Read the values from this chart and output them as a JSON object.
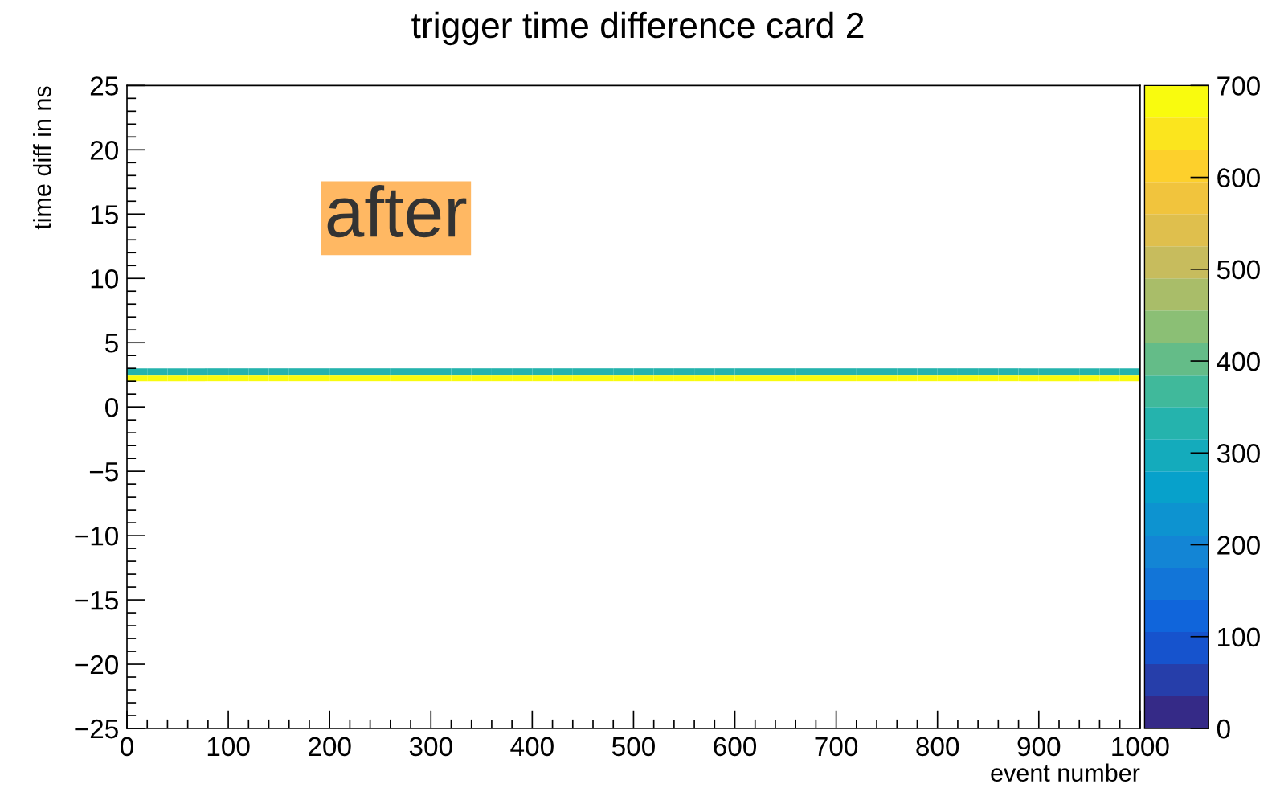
{
  "chart_data": {
    "type": "scatter",
    "title": "trigger time difference card 2",
    "xlabel": "event number",
    "ylabel": "time diff in ns",
    "annotations": [
      "after"
    ],
    "xlim": [
      0,
      1000
    ],
    "xticks": [
      0,
      100,
      200,
      300,
      400,
      500,
      600,
      700,
      800,
      900,
      1000
    ],
    "ylim": [
      -25,
      25
    ],
    "yticks": [
      {
        "value": -25,
        "label": "−25"
      },
      {
        "value": -20,
        "label": "−20"
      },
      {
        "value": -15,
        "label": "−15"
      },
      {
        "value": -10,
        "label": "−10"
      },
      {
        "value": -5,
        "label": "−5"
      },
      0,
      5,
      10,
      15,
      20,
      25
    ],
    "clim": [
      0,
      700
    ],
    "cticks": [
      0,
      100,
      200,
      300,
      400,
      500,
      600,
      700
    ],
    "marker": "square",
    "series": [
      {
        "x": [
          10,
          30,
          50,
          70,
          90,
          110,
          130,
          150,
          170,
          190,
          210,
          230,
          250,
          270,
          290,
          310,
          330,
          350,
          370,
          390,
          410,
          430,
          450,
          470,
          490,
          510,
          530,
          550,
          570,
          590,
          610,
          630,
          650,
          670,
          690,
          710,
          730,
          750,
          770,
          790,
          810,
          830,
          850,
          870,
          890,
          910,
          930,
          950,
          970,
          990
        ],
        "values": [
          2.75,
          2.75,
          2.75,
          2.75,
          2.75,
          2.75,
          2.75,
          2.75,
          2.75,
          2.75,
          2.75,
          2.75,
          2.75,
          2.75,
          2.75,
          2.75,
          2.75,
          2.75,
          2.75,
          2.75,
          2.75,
          2.75,
          2.75,
          2.75,
          2.75,
          2.75,
          2.75,
          2.75,
          2.75,
          2.75,
          2.75,
          2.75,
          2.75,
          2.75,
          2.75,
          2.75,
          2.75,
          2.75,
          2.75,
          2.75,
          2.75,
          2.75,
          2.75,
          2.75,
          2.75,
          2.75,
          2.75,
          2.75,
          2.75,
          2.75
        ],
        "cvalues": [
          330,
          330,
          330,
          330,
          330,
          330,
          330,
          330,
          330,
          330,
          330,
          330,
          330,
          330,
          330,
          330,
          330,
          330,
          330,
          330,
          330,
          330,
          330,
          330,
          330,
          330,
          330,
          330,
          330,
          330,
          330,
          330,
          330,
          330,
          330,
          330,
          330,
          330,
          330,
          330,
          330,
          330,
          330,
          330,
          330,
          330,
          330,
          330,
          330,
          330
        ]
      },
      {
        "x": [
          10,
          30,
          50,
          70,
          90,
          110,
          130,
          150,
          170,
          190,
          210,
          230,
          250,
          270,
          290,
          310,
          330,
          350,
          370,
          390,
          410,
          430,
          450,
          470,
          490,
          510,
          530,
          550,
          570,
          590,
          610,
          630,
          650,
          670,
          690,
          710,
          730,
          750,
          770,
          790,
          810,
          830,
          850,
          870,
          890,
          910,
          930,
          950,
          970,
          990
        ],
        "values": [
          2.25,
          2.25,
          2.25,
          2.25,
          2.25,
          2.25,
          2.25,
          2.25,
          2.25,
          2.25,
          2.25,
          2.25,
          2.25,
          2.25,
          2.25,
          2.25,
          2.25,
          2.25,
          2.25,
          2.25,
          2.25,
          2.25,
          2.25,
          2.25,
          2.25,
          2.25,
          2.25,
          2.25,
          2.25,
          2.25,
          2.25,
          2.25,
          2.25,
          2.25,
          2.25,
          2.25,
          2.25,
          2.25,
          2.25,
          2.25,
          2.25,
          2.25,
          2.25,
          2.25,
          2.25,
          2.25,
          2.25,
          2.25,
          2.25,
          2.25
        ],
        "cvalues": [
          690,
          690,
          690,
          690,
          690,
          690,
          690,
          690,
          690,
          690,
          690,
          690,
          690,
          690,
          690,
          690,
          690,
          690,
          690,
          690,
          690,
          690,
          690,
          690,
          690,
          690,
          690,
          690,
          690,
          690,
          690,
          690,
          690,
          690,
          690,
          690,
          690,
          690,
          690,
          690,
          690,
          690,
          690,
          690,
          690,
          690,
          690,
          690,
          690,
          690
        ]
      }
    ]
  }
}
